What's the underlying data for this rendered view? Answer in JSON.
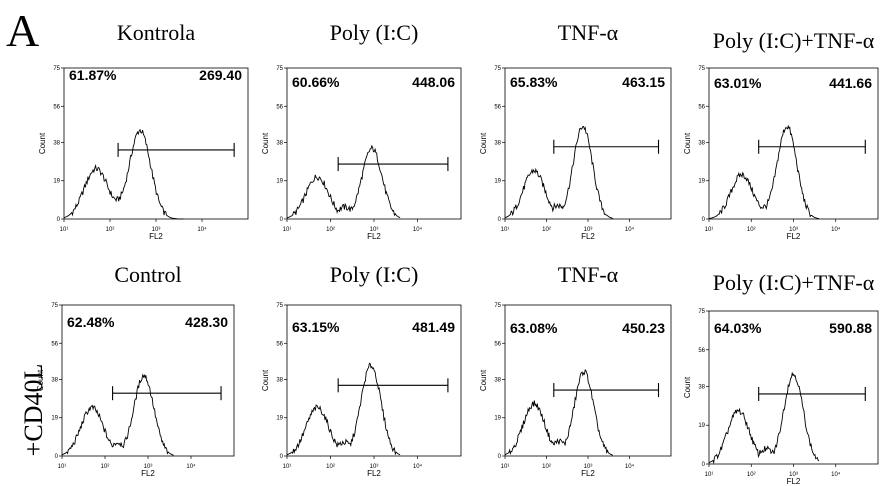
{
  "figure": {
    "panel_letter": "A",
    "row_label": "+CD40L"
  },
  "chart_data": [
    {
      "type": "histogram",
      "title": "Kontrola",
      "gate_percent": "61.87%",
      "gate_value": "269.40",
      "xlabel": "FL2",
      "ylabel": "Count",
      "x_scale": "log",
      "xlim": [
        10,
        100000
      ],
      "ylim": [
        0,
        75
      ],
      "yticks": [
        "0",
        "19",
        "38",
        "56",
        "75"
      ],
      "xticks": [
        "10¹",
        "10²",
        "10³",
        "10⁴"
      ],
      "gate_range": [
        150,
        50000
      ],
      "peaks": [
        {
          "x": 50,
          "y": 25
        },
        {
          "x": 450,
          "y": 44
        }
      ]
    },
    {
      "type": "histogram",
      "title": "Poly (I:C)",
      "gate_percent": "60.66%",
      "gate_value": "448.06",
      "xlabel": "FL2",
      "ylabel": "Count",
      "x_scale": "log",
      "xlim": [
        10,
        100000
      ],
      "ylim": [
        0,
        75
      ],
      "yticks": [
        "0",
        "19",
        "38",
        "56",
        "75"
      ],
      "xticks": [
        "10¹",
        "10²",
        "10³",
        "10⁴"
      ],
      "gate_range": [
        150,
        50000
      ],
      "peaks": [
        {
          "x": 50,
          "y": 21
        },
        {
          "x": 900,
          "y": 35
        }
      ]
    },
    {
      "type": "histogram",
      "title": "TNF-α",
      "gate_percent": "65.83%",
      "gate_value": "463.15",
      "xlabel": "FL2",
      "ylabel": "Count",
      "x_scale": "log",
      "xlim": [
        10,
        100000
      ],
      "ylim": [
        0,
        75
      ],
      "yticks": [
        "0",
        "19",
        "38",
        "56",
        "75"
      ],
      "xticks": [
        "10¹",
        "10²",
        "10³",
        "10⁴"
      ],
      "gate_range": [
        150,
        50000
      ],
      "peaks": [
        {
          "x": 50,
          "y": 24
        },
        {
          "x": 750,
          "y": 46
        }
      ]
    },
    {
      "type": "histogram",
      "title": "Poly (I:C)+TNF-α",
      "gate_percent": "63.01%",
      "gate_value": "441.66",
      "xlabel": "FL2",
      "ylabel": "Count",
      "x_scale": "log",
      "xlim": [
        10,
        100000
      ],
      "ylim": [
        0,
        75
      ],
      "yticks": [
        "0",
        "19",
        "38",
        "56",
        "75"
      ],
      "xticks": [
        "10¹",
        "10²",
        "10³",
        "10⁴"
      ],
      "gate_range": [
        150,
        50000
      ],
      "peaks": [
        {
          "x": 60,
          "y": 22
        },
        {
          "x": 700,
          "y": 46
        }
      ]
    },
    {
      "type": "histogram",
      "title": "Control",
      "gate_percent": "62.48%",
      "gate_value": "428.30",
      "xlabel": "FL2",
      "ylabel": "Count",
      "x_scale": "log",
      "xlim": [
        10,
        100000
      ],
      "ylim": [
        0,
        75
      ],
      "yticks": [
        "0",
        "19",
        "38",
        "56",
        "75"
      ],
      "xticks": [
        "10¹",
        "10²",
        "10³",
        "10⁴"
      ],
      "gate_range": [
        150,
        50000
      ],
      "peaks": [
        {
          "x": 50,
          "y": 24
        },
        {
          "x": 800,
          "y": 40
        }
      ]
    },
    {
      "type": "histogram",
      "title": "Poly (I:C)",
      "gate_percent": "63.15%",
      "gate_value": "481.49",
      "xlabel": "FL2",
      "ylabel": "Count",
      "x_scale": "log",
      "xlim": [
        10,
        100000
      ],
      "ylim": [
        0,
        75
      ],
      "yticks": [
        "0",
        "19",
        "38",
        "56",
        "75"
      ],
      "xticks": [
        "10¹",
        "10²",
        "10³",
        "10⁴"
      ],
      "gate_range": [
        150,
        50000
      ],
      "peaks": [
        {
          "x": 50,
          "y": 24
        },
        {
          "x": 850,
          "y": 45
        }
      ]
    },
    {
      "type": "histogram",
      "title": "TNF-α",
      "gate_percent": "63.08%",
      "gate_value": "450.23",
      "xlabel": "FL2",
      "ylabel": "Count",
      "x_scale": "log",
      "xlim": [
        10,
        100000
      ],
      "ylim": [
        0,
        75
      ],
      "yticks": [
        "0",
        "19",
        "38",
        "56",
        "75"
      ],
      "xticks": [
        "10¹",
        "10²",
        "10³",
        "10⁴"
      ],
      "gate_range": [
        150,
        50000
      ],
      "peaks": [
        {
          "x": 50,
          "y": 26
        },
        {
          "x": 800,
          "y": 42
        }
      ]
    },
    {
      "type": "histogram",
      "title": "Poly (I:C)+TNF-α",
      "gate_percent": "64.03%",
      "gate_value": "590.88",
      "xlabel": "FL2",
      "ylabel": "Count",
      "x_scale": "log",
      "xlim": [
        10,
        100000
      ],
      "ylim": [
        0,
        75
      ],
      "yticks": [
        "0",
        "19",
        "38",
        "56",
        "75"
      ],
      "xticks": [
        "10¹",
        "10²",
        "10³",
        "10⁴"
      ],
      "gate_range": [
        150,
        50000
      ],
      "peaks": [
        {
          "x": 50,
          "y": 26
        },
        {
          "x": 1000,
          "y": 44
        }
      ]
    }
  ]
}
